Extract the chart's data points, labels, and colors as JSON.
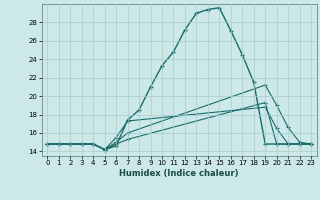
{
  "title": "",
  "xlabel": "Humidex (Indice chaleur)",
  "bg_color": "#cce8e8",
  "grid_color": "#aacccc",
  "line_color": "#1a6b6b",
  "xlim": [
    -0.5,
    23.5
  ],
  "ylim": [
    13.5,
    30.0
  ],
  "xticks": [
    0,
    1,
    2,
    3,
    4,
    5,
    6,
    7,
    8,
    9,
    10,
    11,
    12,
    13,
    14,
    15,
    16,
    17,
    18,
    19,
    20,
    21,
    22,
    23
  ],
  "yticks": [
    14,
    16,
    18,
    20,
    22,
    24,
    26,
    28
  ],
  "line1_x": [
    0,
    1,
    2,
    3,
    4,
    5,
    6,
    7,
    8,
    9,
    10,
    11,
    12,
    13,
    14,
    15,
    16,
    17,
    18,
    19,
    20,
    21,
    22,
    23
  ],
  "line1_y": [
    14.8,
    14.8,
    14.8,
    14.8,
    14.8,
    14.2,
    14.6,
    17.4,
    18.5,
    21.0,
    23.3,
    24.8,
    27.2,
    29.0,
    29.4,
    29.6,
    27.1,
    24.5,
    21.5,
    14.8,
    14.8,
    14.8,
    14.8,
    14.8
  ],
  "line2_x": [
    0,
    1,
    2,
    3,
    4,
    5,
    6,
    7,
    19,
    20,
    21,
    22,
    23
  ],
  "line2_y": [
    14.8,
    14.8,
    14.8,
    14.8,
    14.8,
    14.2,
    15.0,
    16.0,
    21.2,
    19.0,
    16.6,
    15.0,
    14.8
  ],
  "line3_x": [
    0,
    1,
    2,
    3,
    4,
    5,
    6,
    7,
    19,
    20,
    21,
    22,
    23
  ],
  "line3_y": [
    14.8,
    14.8,
    14.8,
    14.8,
    14.8,
    14.2,
    15.5,
    17.3,
    18.8,
    16.5,
    14.8,
    14.8,
    14.8
  ],
  "line4_x": [
    0,
    1,
    2,
    3,
    4,
    5,
    6,
    7,
    19,
    20,
    21,
    22,
    23
  ],
  "line4_y": [
    14.8,
    14.8,
    14.8,
    14.8,
    14.8,
    14.2,
    14.8,
    15.3,
    19.3,
    14.8,
    14.8,
    14.8,
    14.8
  ]
}
